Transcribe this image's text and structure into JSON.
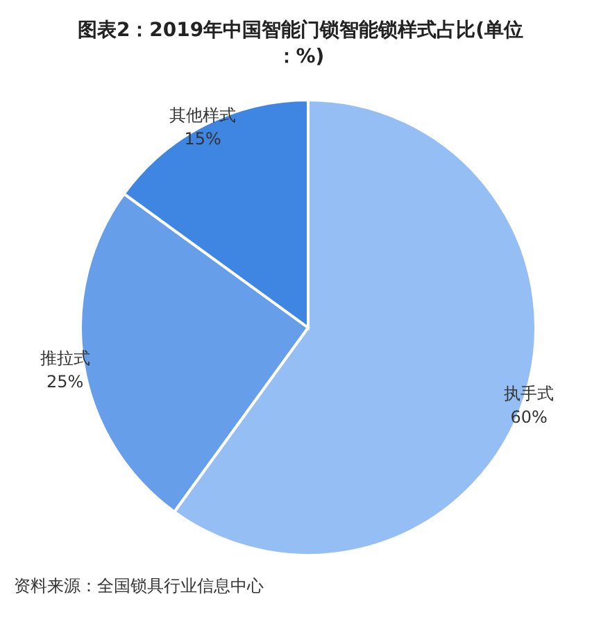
{
  "chart_data": {
    "type": "pie",
    "title": "图表2：2019年中国智能门锁智能锁样式占比(单位：%)",
    "categories": [
      "执手式",
      "推拉式",
      "其他样式"
    ],
    "values": [
      60,
      25,
      15
    ],
    "value_labels": [
      "60%",
      "25%",
      "15%"
    ],
    "colors": [
      "#95bff4",
      "#679ee9",
      "#3f86e3"
    ],
    "annotations": [
      "资料来源：全国锁具行业信息中心"
    ]
  }
}
